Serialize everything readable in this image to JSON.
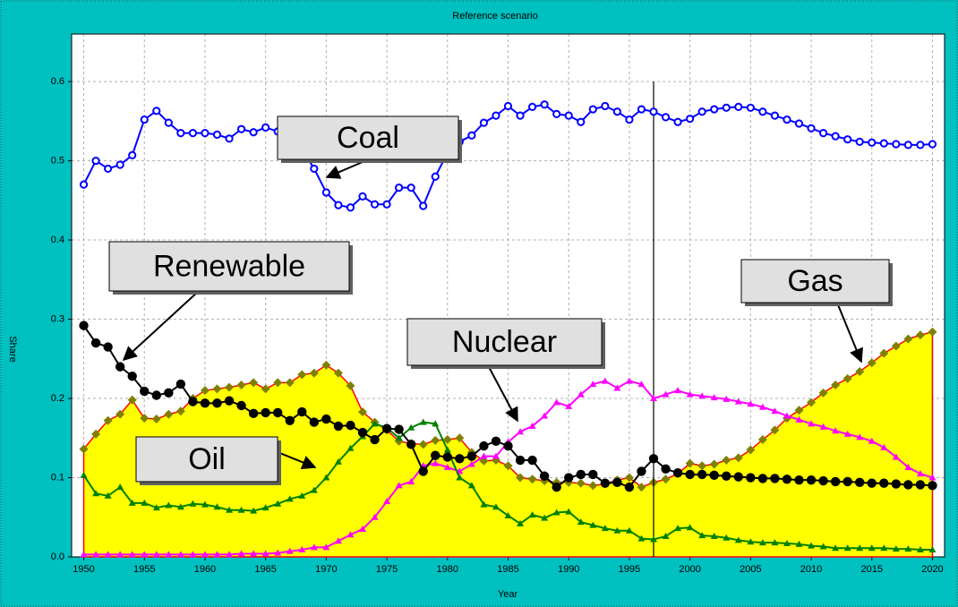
{
  "chart_data": {
    "type": "line",
    "title": "Reference scenario",
    "x_label": "Year",
    "y_label": "Share",
    "x": [
      1950,
      1951,
      1952,
      1953,
      1954,
      1955,
      1956,
      1957,
      1958,
      1959,
      1960,
      1961,
      1962,
      1963,
      1964,
      1965,
      1966,
      1967,
      1968,
      1969,
      1970,
      1971,
      1972,
      1973,
      1974,
      1975,
      1976,
      1977,
      1978,
      1979,
      1980,
      1981,
      1982,
      1983,
      1984,
      1985,
      1986,
      1987,
      1988,
      1989,
      1990,
      1991,
      1992,
      1993,
      1994,
      1995,
      1996,
      1997,
      1998,
      1999,
      2000,
      2001,
      2002,
      2003,
      2004,
      2005,
      2006,
      2007,
      2008,
      2009,
      2010,
      2011,
      2012,
      2013,
      2014,
      2015,
      2016,
      2017,
      2018,
      2019,
      2020
    ],
    "xlim": [
      1949,
      2021
    ],
    "xticks": [
      1950,
      1955,
      1960,
      1965,
      1970,
      1975,
      1980,
      1985,
      1990,
      1995,
      2000,
      2005,
      2010,
      2015,
      2020
    ],
    "ylim": [
      0,
      0.66
    ],
    "yticks": [
      {
        "value": 0,
        "label": "0.0"
      },
      0.1,
      0.2,
      0.3,
      0.4,
      0.5,
      0.6
    ],
    "grid": true,
    "vline_x": 1997,
    "series": [
      {
        "name": "Gas",
        "color": "#ff0000",
        "fill": "#ffff00",
        "marker": "diamond",
        "marker_color": "#808000",
        "values": [
          0.136,
          0.155,
          0.172,
          0.18,
          0.198,
          0.175,
          0.174,
          0.18,
          0.184,
          0.2,
          0.21,
          0.212,
          0.214,
          0.217,
          0.22,
          0.212,
          0.22,
          0.22,
          0.23,
          0.232,
          0.242,
          0.232,
          0.216,
          0.183,
          0.17,
          0.16,
          0.146,
          0.143,
          0.142,
          0.147,
          0.148,
          0.15,
          0.132,
          0.121,
          0.122,
          0.115,
          0.1,
          0.098,
          0.096,
          0.094,
          0.094,
          0.093,
          0.09,
          0.092,
          0.097,
          0.1,
          0.088,
          0.094,
          0.098,
          0.105,
          0.118,
          0.115,
          0.117,
          0.122,
          0.125,
          0.135,
          0.148,
          0.16,
          0.175,
          0.185,
          0.195,
          0.207,
          0.217,
          0.225,
          0.234,
          0.245,
          0.257,
          0.266,
          0.275,
          0.28,
          0.284
        ]
      },
      {
        "name": "Coal",
        "color": "#0000ff",
        "marker": "circle-open",
        "values": [
          0.47,
          0.5,
          0.49,
          0.495,
          0.507,
          0.552,
          0.563,
          0.548,
          0.535,
          0.535,
          0.535,
          0.533,
          0.528,
          0.54,
          0.536,
          0.542,
          0.537,
          0.52,
          0.515,
          0.49,
          0.46,
          0.444,
          0.441,
          0.455,
          0.445,
          0.445,
          0.466,
          0.466,
          0.443,
          0.48,
          0.51,
          0.524,
          0.532,
          0.548,
          0.557,
          0.569,
          0.557,
          0.568,
          0.571,
          0.559,
          0.557,
          0.549,
          0.565,
          0.569,
          0.562,
          0.552,
          0.565,
          0.562,
          0.555,
          0.549,
          0.553,
          0.562,
          0.565,
          0.567,
          0.568,
          0.567,
          0.562,
          0.557,
          0.552,
          0.547,
          0.541,
          0.535,
          0.531,
          0.527,
          0.524,
          0.523,
          0.522,
          0.521,
          0.52,
          0.52,
          0.521
        ]
      },
      {
        "name": "Nuclear",
        "color": "#ff00ff",
        "marker": "triangle",
        "values": [
          0.003,
          0.003,
          0.003,
          0.003,
          0.003,
          0.003,
          0.003,
          0.003,
          0.003,
          0.003,
          0.003,
          0.003,
          0.003,
          0.004,
          0.004,
          0.004,
          0.005,
          0.007,
          0.009,
          0.012,
          0.012,
          0.02,
          0.028,
          0.035,
          0.05,
          0.07,
          0.09,
          0.095,
          0.115,
          0.118,
          0.113,
          0.108,
          0.117,
          0.127,
          0.127,
          0.145,
          0.158,
          0.165,
          0.178,
          0.195,
          0.19,
          0.205,
          0.218,
          0.222,
          0.213,
          0.222,
          0.218,
          0.2,
          0.205,
          0.21,
          0.205,
          0.203,
          0.201,
          0.199,
          0.196,
          0.193,
          0.189,
          0.184,
          0.178,
          0.173,
          0.168,
          0.164,
          0.159,
          0.155,
          0.151,
          0.146,
          0.138,
          0.126,
          0.113,
          0.105,
          0.1
        ]
      },
      {
        "name": "Oil",
        "color": "#008000",
        "marker": "triangle",
        "values": [
          0.103,
          0.08,
          0.077,
          0.088,
          0.068,
          0.068,
          0.062,
          0.065,
          0.063,
          0.067,
          0.066,
          0.063,
          0.059,
          0.059,
          0.058,
          0.062,
          0.067,
          0.073,
          0.077,
          0.084,
          0.1,
          0.12,
          0.137,
          0.152,
          0.168,
          0.163,
          0.15,
          0.163,
          0.17,
          0.168,
          0.135,
          0.1,
          0.09,
          0.066,
          0.063,
          0.052,
          0.042,
          0.053,
          0.049,
          0.056,
          0.057,
          0.044,
          0.04,
          0.036,
          0.033,
          0.033,
          0.023,
          0.022,
          0.026,
          0.036,
          0.037,
          0.027,
          0.026,
          0.024,
          0.021,
          0.019,
          0.018,
          0.018,
          0.017,
          0.016,
          0.014,
          0.013,
          0.011,
          0.011,
          0.011,
          0.011,
          0.011,
          0.01,
          0.01,
          0.009,
          0.009
        ]
      },
      {
        "name": "Renewable",
        "color": "#000000",
        "marker": "circle",
        "values": [
          0.292,
          0.27,
          0.265,
          0.24,
          0.228,
          0.209,
          0.204,
          0.207,
          0.218,
          0.196,
          0.194,
          0.194,
          0.197,
          0.191,
          0.181,
          0.182,
          0.182,
          0.172,
          0.183,
          0.17,
          0.174,
          0.165,
          0.166,
          0.157,
          0.148,
          0.162,
          0.161,
          0.142,
          0.108,
          0.128,
          0.126,
          0.124,
          0.127,
          0.14,
          0.146,
          0.14,
          0.122,
          0.122,
          0.102,
          0.088,
          0.1,
          0.104,
          0.104,
          0.093,
          0.094,
          0.088,
          0.108,
          0.124,
          0.111,
          0.106,
          0.104,
          0.104,
          0.103,
          0.102,
          0.101,
          0.1,
          0.099,
          0.099,
          0.098,
          0.097,
          0.097,
          0.096,
          0.095,
          0.095,
          0.094,
          0.093,
          0.093,
          0.092,
          0.091,
          0.091,
          0.09
        ]
      }
    ]
  }
}
